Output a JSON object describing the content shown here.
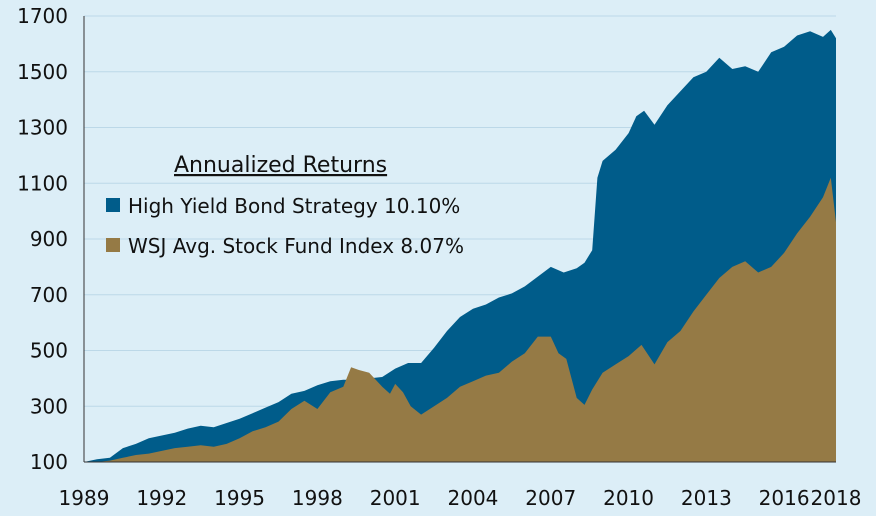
{
  "chart_data": {
    "type": "area",
    "title": "",
    "xlabel": "",
    "ylabel": "",
    "xlim": [
      1989,
      2018
    ],
    "ylim": [
      100,
      1700
    ],
    "x_ticks": [
      "1989",
      "1992",
      "1995",
      "1998",
      "2001",
      "2004",
      "2007",
      "2010",
      "2013",
      "2016",
      "2018"
    ],
    "y_ticks": [
      "100",
      "300",
      "500",
      "700",
      "900",
      "1100",
      "1300",
      "1500",
      "1700"
    ],
    "grid": true,
    "legend": {
      "title": "Annualized Returns",
      "placement": "top-left",
      "items": [
        {
          "label": "High Yield Bond Strategy  10.10%",
          "color": "#005c8a"
        },
        {
          "label": "WSJ Avg. Stock Fund Index 8.07%",
          "color": "#957a45"
        }
      ]
    },
    "series": [
      {
        "name": "High Yield Bond Strategy",
        "color": "#005c8a",
        "points": [
          [
            1989.0,
            100
          ],
          [
            1989.5,
            110
          ],
          [
            1990.0,
            115
          ],
          [
            1990.5,
            150
          ],
          [
            1991.0,
            165
          ],
          [
            1991.5,
            185
          ],
          [
            1992.0,
            195
          ],
          [
            1992.5,
            205
          ],
          [
            1993.0,
            220
          ],
          [
            1993.5,
            230
          ],
          [
            1994.0,
            225
          ],
          [
            1994.5,
            240
          ],
          [
            1995.0,
            255
          ],
          [
            1995.5,
            275
          ],
          [
            1996.0,
            295
          ],
          [
            1996.5,
            315
          ],
          [
            1997.0,
            345
          ],
          [
            1997.5,
            355
          ],
          [
            1998.0,
            375
          ],
          [
            1998.5,
            390
          ],
          [
            1999.0,
            395
          ],
          [
            1999.5,
            395
          ],
          [
            2000.0,
            400
          ],
          [
            2000.5,
            405
          ],
          [
            2001.0,
            435
          ],
          [
            2001.5,
            455
          ],
          [
            2002.0,
            455
          ],
          [
            2002.5,
            510
          ],
          [
            2003.0,
            570
          ],
          [
            2003.5,
            620
          ],
          [
            2004.0,
            650
          ],
          [
            2004.5,
            665
          ],
          [
            2005.0,
            690
          ],
          [
            2005.5,
            705
          ],
          [
            2006.0,
            730
          ],
          [
            2006.5,
            765
          ],
          [
            2007.0,
            800
          ],
          [
            2007.5,
            780
          ],
          [
            2008.0,
            795
          ],
          [
            2008.3,
            815
          ],
          [
            2008.6,
            860
          ],
          [
            2008.8,
            1120
          ],
          [
            2009.0,
            1180
          ],
          [
            2009.5,
            1220
          ],
          [
            2010.0,
            1280
          ],
          [
            2010.3,
            1340
          ],
          [
            2010.6,
            1360
          ],
          [
            2011.0,
            1310
          ],
          [
            2011.5,
            1380
          ],
          [
            2012.0,
            1430
          ],
          [
            2012.5,
            1480
          ],
          [
            2013.0,
            1500
          ],
          [
            2013.5,
            1550
          ],
          [
            2014.0,
            1510
          ],
          [
            2014.5,
            1520
          ],
          [
            2015.0,
            1500
          ],
          [
            2015.5,
            1570
          ],
          [
            2016.0,
            1590
          ],
          [
            2016.5,
            1630
          ],
          [
            2017.0,
            1645
          ],
          [
            2017.5,
            1625
          ],
          [
            2017.8,
            1650
          ],
          [
            2018.0,
            1620
          ]
        ]
      },
      {
        "name": "WSJ Avg. Stock Fund Index",
        "color": "#957a45",
        "points": [
          [
            1989.0,
            100
          ],
          [
            1989.5,
            100
          ],
          [
            1990.0,
            105
          ],
          [
            1990.5,
            115
          ],
          [
            1991.0,
            125
          ],
          [
            1991.5,
            130
          ],
          [
            1992.0,
            140
          ],
          [
            1992.5,
            150
          ],
          [
            1993.0,
            155
          ],
          [
            1993.5,
            160
          ],
          [
            1994.0,
            155
          ],
          [
            1994.5,
            165
          ],
          [
            1995.0,
            185
          ],
          [
            1995.5,
            210
          ],
          [
            1996.0,
            225
          ],
          [
            1996.5,
            245
          ],
          [
            1997.0,
            290
          ],
          [
            1997.5,
            320
          ],
          [
            1998.0,
            290
          ],
          [
            1998.5,
            350
          ],
          [
            1999.0,
            370
          ],
          [
            1999.3,
            440
          ],
          [
            1999.6,
            430
          ],
          [
            2000.0,
            420
          ],
          [
            2000.5,
            370
          ],
          [
            2000.8,
            345
          ],
          [
            2001.0,
            380
          ],
          [
            2001.3,
            350
          ],
          [
            2001.6,
            300
          ],
          [
            2002.0,
            270
          ],
          [
            2002.5,
            300
          ],
          [
            2003.0,
            330
          ],
          [
            2003.5,
            370
          ],
          [
            2004.0,
            390
          ],
          [
            2004.5,
            410
          ],
          [
            2005.0,
            420
          ],
          [
            2005.5,
            460
          ],
          [
            2006.0,
            490
          ],
          [
            2006.5,
            550
          ],
          [
            2007.0,
            550
          ],
          [
            2007.3,
            490
          ],
          [
            2007.6,
            470
          ],
          [
            2008.0,
            330
          ],
          [
            2008.3,
            305
          ],
          [
            2008.6,
            360
          ],
          [
            2009.0,
            420
          ],
          [
            2009.5,
            450
          ],
          [
            2010.0,
            480
          ],
          [
            2010.5,
            520
          ],
          [
            2011.0,
            450
          ],
          [
            2011.5,
            530
          ],
          [
            2012.0,
            570
          ],
          [
            2012.5,
            640
          ],
          [
            2013.0,
            700
          ],
          [
            2013.5,
            760
          ],
          [
            2014.0,
            800
          ],
          [
            2014.5,
            820
          ],
          [
            2015.0,
            780
          ],
          [
            2015.5,
            800
          ],
          [
            2016.0,
            850
          ],
          [
            2016.5,
            920
          ],
          [
            2017.0,
            980
          ],
          [
            2017.5,
            1050
          ],
          [
            2017.8,
            1120
          ],
          [
            2018.0,
            960
          ]
        ]
      }
    ]
  }
}
